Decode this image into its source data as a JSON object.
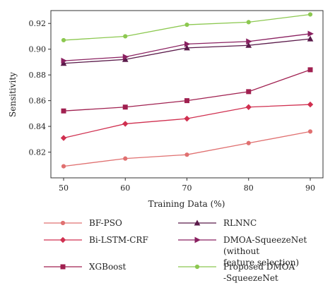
{
  "chart_data": {
    "type": "line",
    "xlabel": "Training Data (%)",
    "ylabel": "Sensitivity",
    "x": [
      50,
      60,
      70,
      80,
      90
    ],
    "xlim": [
      50,
      90
    ],
    "ylim": [
      0.8,
      0.93
    ],
    "xticks": [
      50,
      60,
      70,
      80,
      90
    ],
    "yticks": [
      0.82,
      0.84,
      0.86,
      0.88,
      0.9,
      0.92
    ],
    "ytick_labels": [
      "0.82",
      "0.84",
      "0.86",
      "0.88",
      "0.90",
      "0.92"
    ],
    "grid": false,
    "legend_position": "bottom",
    "series": [
      {
        "name": "BF-PSO",
        "color": "#e07070",
        "marker": "circle",
        "values": [
          0.809,
          0.815,
          0.818,
          0.827,
          0.836
        ]
      },
      {
        "name": "Bi-LSTM-CRF",
        "color": "#d03050",
        "marker": "diamond",
        "values": [
          0.831,
          0.842,
          0.846,
          0.855,
          0.857
        ]
      },
      {
        "name": "XGBoost",
        "color": "#a02050",
        "marker": "square",
        "values": [
          0.852,
          0.855,
          0.86,
          0.867,
          0.884
        ]
      },
      {
        "name": "RLNNC",
        "color": "#5a1a4a",
        "marker": "triangle",
        "values": [
          0.889,
          0.892,
          0.901,
          0.903,
          0.908
        ]
      },
      {
        "name": "DMOA-SqueezeNet (without\nfeature selection)",
        "color": "#8a2060",
        "marker": "triangle-right",
        "values": [
          0.891,
          0.894,
          0.904,
          0.906,
          0.912
        ]
      },
      {
        "name": "Proposed DMOA\n-SqueezeNet",
        "color": "#8cc850",
        "marker": "circle",
        "values": [
          0.907,
          0.91,
          0.919,
          0.921,
          0.927
        ]
      }
    ]
  }
}
